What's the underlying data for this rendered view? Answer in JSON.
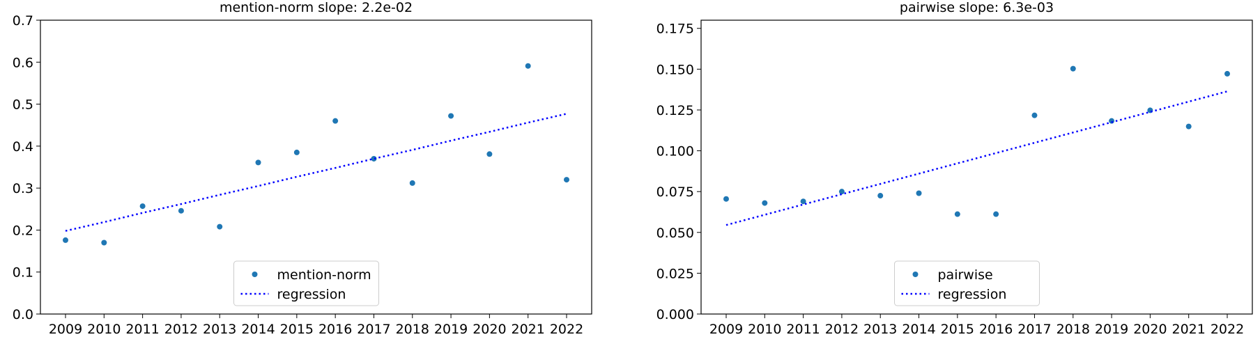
{
  "chart_data": [
    {
      "type": "scatter",
      "title": "mention-norm slope: 2.2e-02",
      "xlabel": "",
      "ylabel": "",
      "x": [
        2009,
        2010,
        2011,
        2012,
        2013,
        2014,
        2015,
        2016,
        2017,
        2018,
        2019,
        2020,
        2021,
        2022
      ],
      "xticks": [
        "2009",
        "2010",
        "2011",
        "2012",
        "2013",
        "2014",
        "2015",
        "2016",
        "2017",
        "2018",
        "2019",
        "2020",
        "2021",
        "2022"
      ],
      "ylim": [
        0,
        0.7
      ],
      "yticks": [
        "0.0",
        "0.1",
        "0.2",
        "0.3",
        "0.4",
        "0.5",
        "0.6",
        "0.7"
      ],
      "grid": false,
      "legend_position": "bottom-center",
      "series": [
        {
          "name": "mention-norm",
          "kind": "points",
          "color": "#1f77b4",
          "values": [
            0.176,
            0.17,
            0.257,
            0.246,
            0.208,
            0.361,
            0.385,
            0.46,
            0.37,
            0.312,
            0.472,
            0.381,
            0.591,
            0.32
          ]
        },
        {
          "name": "regression",
          "kind": "dotted-line",
          "color": "#0000ff",
          "values": [
            0.198,
            0.219,
            0.241,
            0.262,
            0.284,
            0.305,
            0.327,
            0.348,
            0.37,
            0.391,
            0.413,
            0.434,
            0.456,
            0.477
          ]
        }
      ]
    },
    {
      "type": "scatter",
      "title": "pairwise slope: 6.3e-03",
      "xlabel": "",
      "ylabel": "",
      "x": [
        2009,
        2010,
        2011,
        2012,
        2013,
        2014,
        2015,
        2016,
        2017,
        2018,
        2019,
        2020,
        2021,
        2022
      ],
      "xticks": [
        "2009",
        "2010",
        "2011",
        "2012",
        "2013",
        "2014",
        "2015",
        "2016",
        "2017",
        "2018",
        "2019",
        "2020",
        "2021",
        "2022"
      ],
      "ylim": [
        0,
        0.18
      ],
      "yticks": [
        "0.000",
        "0.025",
        "0.050",
        "0.075",
        "0.100",
        "0.125",
        "0.150",
        "0.175"
      ],
      "grid": false,
      "legend_position": "bottom-center",
      "series": [
        {
          "name": "pairwise",
          "kind": "points",
          "color": "#1f77b4",
          "values": [
            0.0705,
            0.068,
            0.069,
            0.075,
            0.0725,
            0.074,
            0.0612,
            0.0612,
            0.1217,
            0.1503,
            0.1183,
            0.1248,
            0.1149,
            0.1472
          ]
        },
        {
          "name": "regression",
          "kind": "dotted-line",
          "color": "#0000ff",
          "values": [
            0.0545,
            0.0608,
            0.0671,
            0.0734,
            0.0797,
            0.086,
            0.0923,
            0.0986,
            0.1049,
            0.1112,
            0.1175,
            0.1238,
            0.1301,
            0.1364
          ]
        }
      ]
    }
  ]
}
